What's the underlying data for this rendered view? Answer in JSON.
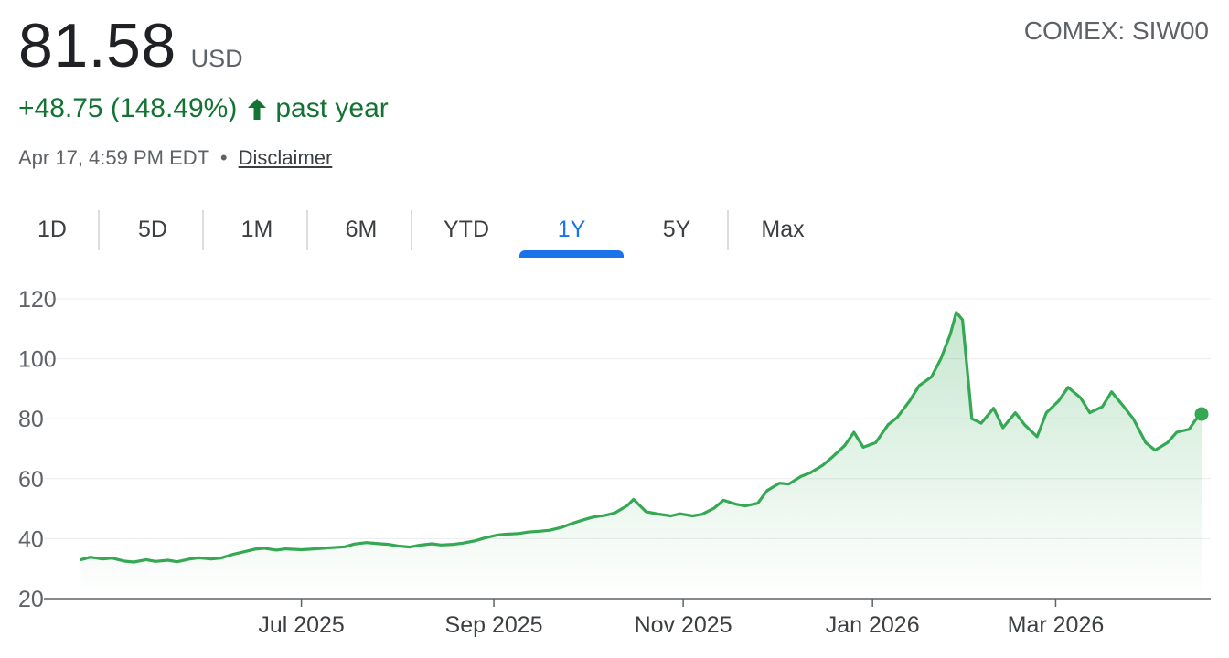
{
  "header": {
    "price": "81.58",
    "currency": "USD",
    "ticker": "COMEX: SIW00",
    "change": "+48.75 (148.49%)",
    "change_period": "past year",
    "timestamp": "Apr 17, 4:59 PM EDT",
    "separator": "•",
    "disclaimer": "Disclaimer",
    "colors": {
      "positive": "#137333",
      "accent": "#1a73e8",
      "line": "#34a853"
    },
    "icons": {
      "change_direction": "arrow-up-icon"
    }
  },
  "tabs": [
    {
      "label": "1D",
      "active": false
    },
    {
      "label": "5D",
      "active": false
    },
    {
      "label": "1M",
      "active": false
    },
    {
      "label": "6M",
      "active": false
    },
    {
      "label": "YTD",
      "active": false
    },
    {
      "label": "1Y",
      "active": true
    },
    {
      "label": "5Y",
      "active": false
    },
    {
      "label": "Max",
      "active": false
    }
  ],
  "chart_data": {
    "type": "area",
    "title": "",
    "xlabel": "",
    "ylabel": "",
    "ylim": [
      20,
      120
    ],
    "xlim": [
      "2025-04-17",
      "2026-04-17"
    ],
    "y_ticks": [
      "20",
      "40",
      "60",
      "80",
      "100",
      "120"
    ],
    "x_tick_labels": [
      {
        "label": "Jul 2025",
        "date": "2025-07-01"
      },
      {
        "label": "Sep 2025",
        "date": "2025-09-01"
      },
      {
        "label": "Nov 2025",
        "date": "2025-11-01"
      },
      {
        "label": "Jan 2026",
        "date": "2026-01-01"
      },
      {
        "label": "Mar 2026",
        "date": "2026-03-01"
      }
    ],
    "grid": "horizontal",
    "series": [
      {
        "color": "#34a853",
        "points": [
          [
            "2025-04-21",
            33.0
          ],
          [
            "2025-04-24",
            33.8
          ],
          [
            "2025-04-28",
            33.2
          ],
          [
            "2025-05-01",
            33.5
          ],
          [
            "2025-05-05",
            32.5
          ],
          [
            "2025-05-08",
            32.2
          ],
          [
            "2025-05-12",
            33.0
          ],
          [
            "2025-05-15",
            32.4
          ],
          [
            "2025-05-19",
            32.8
          ],
          [
            "2025-05-22",
            32.3
          ],
          [
            "2025-05-26",
            33.2
          ],
          [
            "2025-05-29",
            33.6
          ],
          [
            "2025-06-02",
            33.2
          ],
          [
            "2025-06-05",
            33.5
          ],
          [
            "2025-06-09",
            34.8
          ],
          [
            "2025-06-12",
            35.5
          ],
          [
            "2025-06-16",
            36.5
          ],
          [
            "2025-06-19",
            36.8
          ],
          [
            "2025-06-23",
            36.2
          ],
          [
            "2025-06-26",
            36.6
          ],
          [
            "2025-07-01",
            36.3
          ],
          [
            "2025-07-04",
            36.5
          ],
          [
            "2025-07-08",
            36.8
          ],
          [
            "2025-07-11",
            37.0
          ],
          [
            "2025-07-15",
            37.3
          ],
          [
            "2025-07-18",
            38.2
          ],
          [
            "2025-07-22",
            38.7
          ],
          [
            "2025-07-25",
            38.4
          ],
          [
            "2025-07-29",
            38.1
          ],
          [
            "2025-08-01",
            37.6
          ],
          [
            "2025-08-05",
            37.2
          ],
          [
            "2025-08-08",
            37.8
          ],
          [
            "2025-08-12",
            38.3
          ],
          [
            "2025-08-15",
            37.9
          ],
          [
            "2025-08-19",
            38.1
          ],
          [
            "2025-08-22",
            38.5
          ],
          [
            "2025-08-26",
            39.3
          ],
          [
            "2025-08-29",
            40.2
          ],
          [
            "2025-09-02",
            41.2
          ],
          [
            "2025-09-05",
            41.5
          ],
          [
            "2025-09-09",
            41.7
          ],
          [
            "2025-09-12",
            42.2
          ],
          [
            "2025-09-16",
            42.5
          ],
          [
            "2025-09-19",
            42.8
          ],
          [
            "2025-09-23",
            43.8
          ],
          [
            "2025-09-26",
            45.0
          ],
          [
            "2025-09-30",
            46.3
          ],
          [
            "2025-10-03",
            47.2
          ],
          [
            "2025-10-07",
            47.8
          ],
          [
            "2025-10-10",
            48.6
          ],
          [
            "2025-10-14",
            51.0
          ],
          [
            "2025-10-16",
            53.1
          ],
          [
            "2025-10-20",
            49.0
          ],
          [
            "2025-10-24",
            48.2
          ],
          [
            "2025-10-28",
            47.6
          ],
          [
            "2025-10-31",
            48.3
          ],
          [
            "2025-11-04",
            47.6
          ],
          [
            "2025-11-07",
            48.1
          ],
          [
            "2025-11-11",
            50.2
          ],
          [
            "2025-11-14",
            52.8
          ],
          [
            "2025-11-18",
            51.5
          ],
          [
            "2025-11-21",
            50.9
          ],
          [
            "2025-11-25",
            51.8
          ],
          [
            "2025-11-28",
            56.0
          ],
          [
            "2025-12-02",
            58.5
          ],
          [
            "2025-12-05",
            58.2
          ],
          [
            "2025-12-09",
            60.8
          ],
          [
            "2025-12-12",
            62.0
          ],
          [
            "2025-12-16",
            64.5
          ],
          [
            "2025-12-19",
            67.2
          ],
          [
            "2025-12-23",
            71.0
          ],
          [
            "2025-12-26",
            75.5
          ],
          [
            "2025-12-29",
            70.5
          ],
          [
            "2026-01-02",
            72.0
          ],
          [
            "2026-01-06",
            78.0
          ],
          [
            "2026-01-09",
            80.5
          ],
          [
            "2026-01-13",
            86.0
          ],
          [
            "2026-01-16",
            91.0
          ],
          [
            "2026-01-20",
            94.0
          ],
          [
            "2026-01-23",
            100.0
          ],
          [
            "2026-01-26",
            108.0
          ],
          [
            "2026-01-28",
            115.5
          ],
          [
            "2026-01-30",
            113.0
          ],
          [
            "2026-02-02",
            80.0
          ],
          [
            "2026-02-05",
            78.5
          ],
          [
            "2026-02-09",
            83.5
          ],
          [
            "2026-02-12",
            77.0
          ],
          [
            "2026-02-16",
            82.0
          ],
          [
            "2026-02-19",
            78.0
          ],
          [
            "2026-02-23",
            74.0
          ],
          [
            "2026-02-26",
            82.0
          ],
          [
            "2026-03-02",
            86.0
          ],
          [
            "2026-03-05",
            90.5
          ],
          [
            "2026-03-09",
            87.0
          ],
          [
            "2026-03-12",
            82.0
          ],
          [
            "2026-03-16",
            84.0
          ],
          [
            "2026-03-19",
            89.0
          ],
          [
            "2026-03-23",
            84.0
          ],
          [
            "2026-03-26",
            80.0
          ],
          [
            "2026-03-30",
            72.0
          ],
          [
            "2026-04-02",
            69.5
          ],
          [
            "2026-04-06",
            72.0
          ],
          [
            "2026-04-09",
            75.5
          ],
          [
            "2026-04-13",
            76.5
          ],
          [
            "2026-04-15",
            79.5
          ],
          [
            "2026-04-17",
            81.58
          ]
        ]
      }
    ]
  }
}
